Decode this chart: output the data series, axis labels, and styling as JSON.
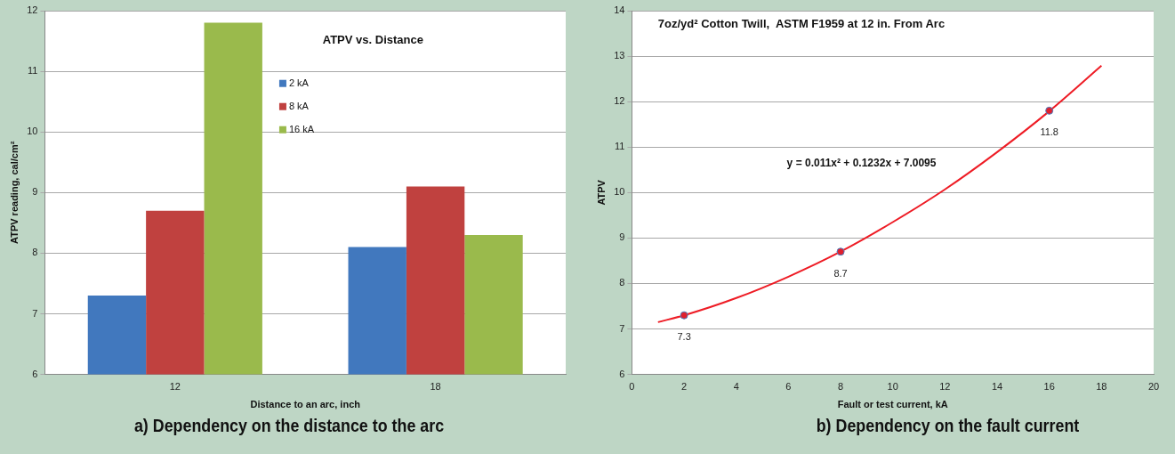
{
  "chart_data": [
    {
      "type": "bar",
      "title": "ATPV vs. Distance",
      "xlabel": "Distance to an arc, inch",
      "ylabel": "ATPV reading, cal/cm²",
      "categories": [
        "12",
        "18"
      ],
      "series": [
        {
          "name": "2 kA",
          "color": "#4178be",
          "values": [
            7.3,
            8.1
          ]
        },
        {
          "name": "8 kA",
          "color": "#c0413f",
          "values": [
            8.7,
            9.1
          ]
        },
        {
          "name": "16 kA",
          "color": "#9aba4c",
          "values": [
            11.8,
            8.3
          ]
        }
      ],
      "ylim": [
        6,
        12
      ],
      "yticks": [
        6,
        7,
        8,
        9,
        10,
        11,
        12
      ],
      "grid": "y",
      "legend": "top",
      "annotations": [
        "a) Dependency on the distance to the arc"
      ]
    },
    {
      "type": "scatter",
      "title": "7oz/yd² Cotton Twill,  ASTM F1959 at 12 in. From Arc",
      "xlabel": "Fault or test current, kA",
      "ylabel": "ATPV",
      "series": [
        {
          "type": "scatter",
          "color": "#e0202e",
          "x": [
            2,
            8,
            16
          ],
          "values": [
            7.3,
            8.7,
            11.8
          ],
          "value_labels": [
            "7.3",
            "8.7",
            "11.8"
          ],
          "marker": "circle"
        },
        {
          "type": "line",
          "color": "#ee1c25",
          "x": [
            1,
            2,
            4,
            6,
            8,
            10,
            12,
            14,
            16,
            18
          ],
          "values": [
            7.15,
            7.3,
            7.68,
            8.15,
            8.7,
            9.35,
            10.07,
            10.89,
            11.79,
            12.79
          ],
          "marker": "none"
        }
      ],
      "xlim": [
        0,
        20
      ],
      "xticks": [
        0,
        2,
        4,
        6,
        8,
        10,
        12,
        14,
        16,
        18,
        20
      ],
      "ylim": [
        6,
        14
      ],
      "yticks": [
        6,
        7,
        8,
        9,
        10,
        11,
        12,
        13,
        14
      ],
      "grid": "y",
      "annotations": [
        "y = 0.011x² + 0.1232x + 7.0095",
        "b) Dependency on the fault current"
      ]
    }
  ]
}
